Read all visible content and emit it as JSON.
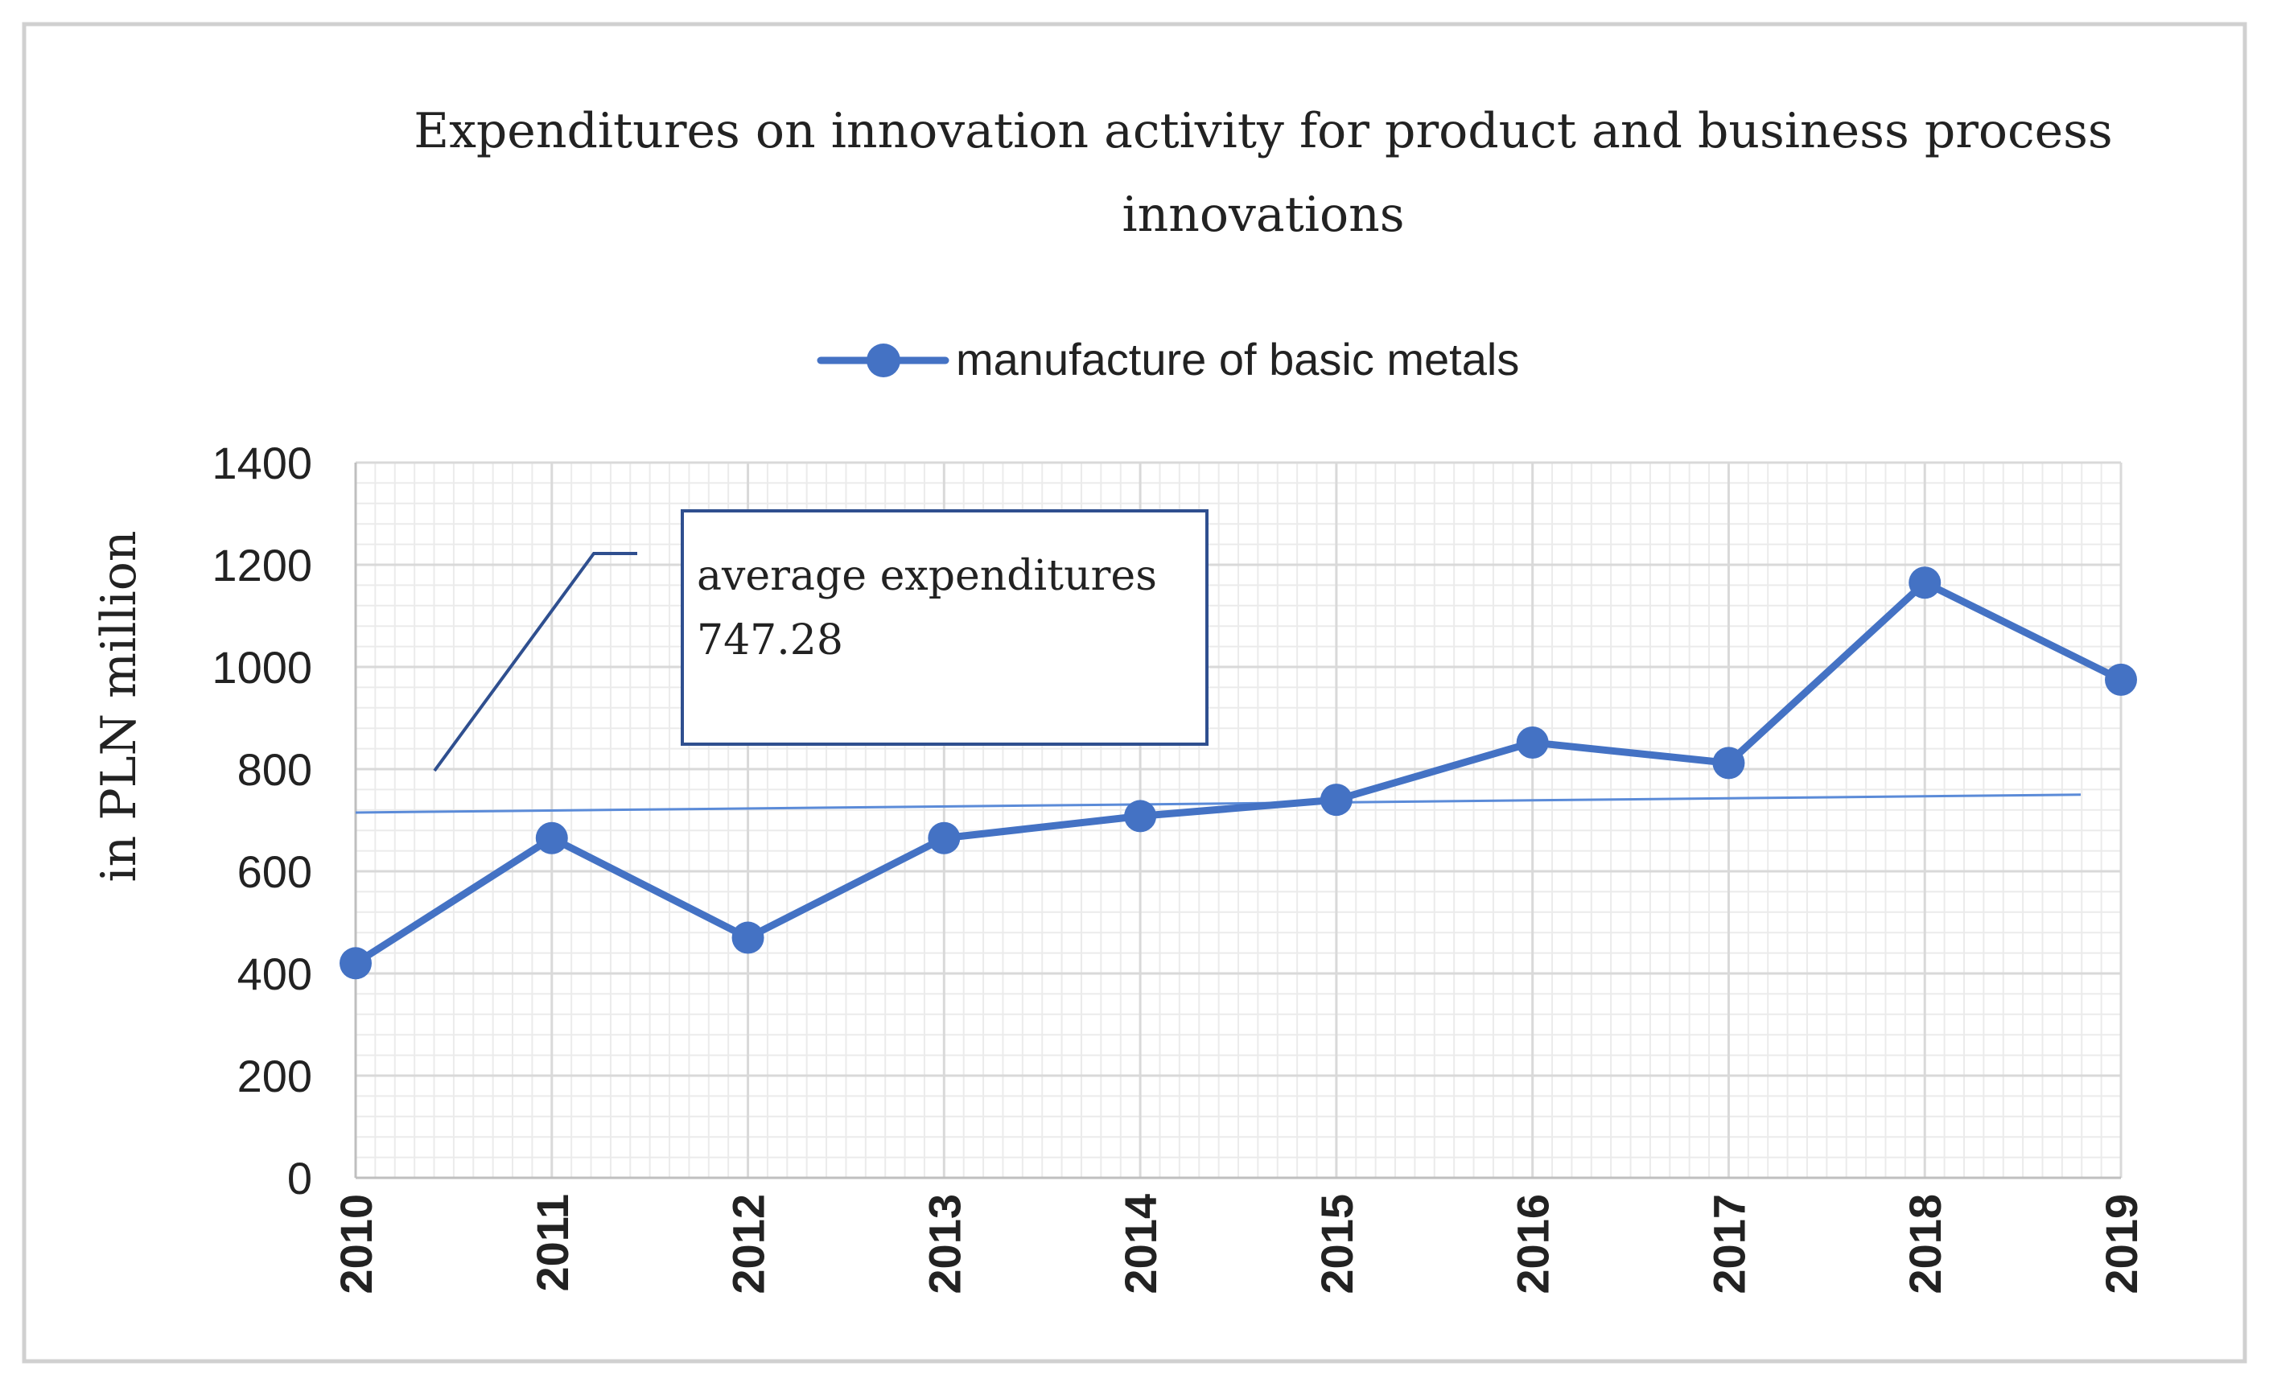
{
  "chart_data": {
    "type": "line",
    "title_lines": [
      "Expenditures on innovation activity for product and business process",
      "innovations"
    ],
    "xlabel": "",
    "ylabel": "in PLN million",
    "ylim": [
      0,
      1400
    ],
    "yticks": [
      0,
      200,
      400,
      600,
      800,
      1000,
      1200,
      1400
    ],
    "ytick_labels": [
      "0",
      "200",
      "400",
      "600",
      "800",
      "1000",
      "1200",
      "1400"
    ],
    "categories": [
      "2010",
      "2011",
      "2012",
      "2013",
      "2014",
      "2015",
      "2016",
      "2017",
      "2018",
      "2019"
    ],
    "series": [
      {
        "name": "manufacture of basic metals",
        "color": "#4472C4",
        "values": [
          420,
          665,
          470,
          665,
          708,
          740,
          852,
          812,
          1165,
          975
        ]
      }
    ],
    "trendline": {
      "color": "#5B8BD8",
      "start": {
        "x": "2010",
        "y": 715
      },
      "end": {
        "x": "2019",
        "y": 750
      }
    },
    "annotation": {
      "line1": "average expenditures",
      "line2": "747.28",
      "border_color": "#2F4F8F"
    },
    "grid": true,
    "legend_position": "top-center",
    "colors": {
      "frame": "#D0D0D0",
      "grid_major": "#D9D9D9",
      "grid_minor": "#EBEBEB",
      "axis": "#BFBFBF"
    }
  }
}
